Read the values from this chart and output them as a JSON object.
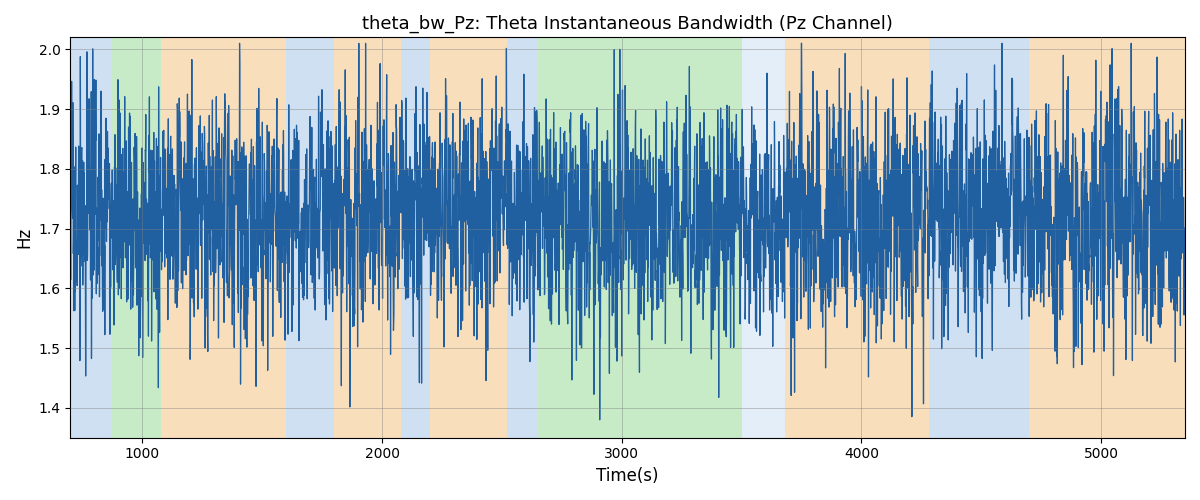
{
  "title": "theta_bw_Pz: Theta Instantaneous Bandwidth (Pz Channel)",
  "xlabel": "Time(s)",
  "ylabel": "Hz",
  "xlim": [
    700,
    5350
  ],
  "ylim": [
    1.35,
    2.02
  ],
  "yticks": [
    1.4,
    1.5,
    1.6,
    1.7,
    1.8,
    1.9,
    2.0
  ],
  "xticks": [
    1000,
    2000,
    3000,
    4000,
    5000
  ],
  "line_color": "#2060a0",
  "line_width": 0.9,
  "bg_bands": [
    {
      "xmin": 700,
      "xmax": 870,
      "color": "#a8c8e8",
      "alpha": 0.55
    },
    {
      "xmin": 870,
      "xmax": 1080,
      "color": "#90d890",
      "alpha": 0.5
    },
    {
      "xmin": 1080,
      "xmax": 1600,
      "color": "#f5c890",
      "alpha": 0.6
    },
    {
      "xmin": 1600,
      "xmax": 1800,
      "color": "#a8c8e8",
      "alpha": 0.55
    },
    {
      "xmin": 1800,
      "xmax": 2080,
      "color": "#f5c890",
      "alpha": 0.6
    },
    {
      "xmin": 2080,
      "xmax": 2200,
      "color": "#a8c8e8",
      "alpha": 0.55
    },
    {
      "xmin": 2200,
      "xmax": 2520,
      "color": "#f5c890",
      "alpha": 0.6
    },
    {
      "xmin": 2520,
      "xmax": 2650,
      "color": "#a8c8e8",
      "alpha": 0.55
    },
    {
      "xmin": 2650,
      "xmax": 3100,
      "color": "#90d890",
      "alpha": 0.5
    },
    {
      "xmin": 3100,
      "xmax": 3500,
      "color": "#90d890",
      "alpha": 0.5
    },
    {
      "xmin": 3500,
      "xmax": 3680,
      "color": "#a8c8e8",
      "alpha": 0.3
    },
    {
      "xmin": 3680,
      "xmax": 4280,
      "color": "#f5c890",
      "alpha": 0.6
    },
    {
      "xmin": 4280,
      "xmax": 4700,
      "color": "#a8c8e8",
      "alpha": 0.55
    },
    {
      "xmin": 4700,
      "xmax": 5000,
      "color": "#f5c890",
      "alpha": 0.6
    },
    {
      "xmin": 5000,
      "xmax": 5350,
      "color": "#f5c890",
      "alpha": 0.6
    }
  ],
  "seed": 17,
  "n_points": 4600,
  "signal_mean": 1.72,
  "signal_std": 0.085,
  "signal_min": 1.38,
  "signal_max": 2.01
}
